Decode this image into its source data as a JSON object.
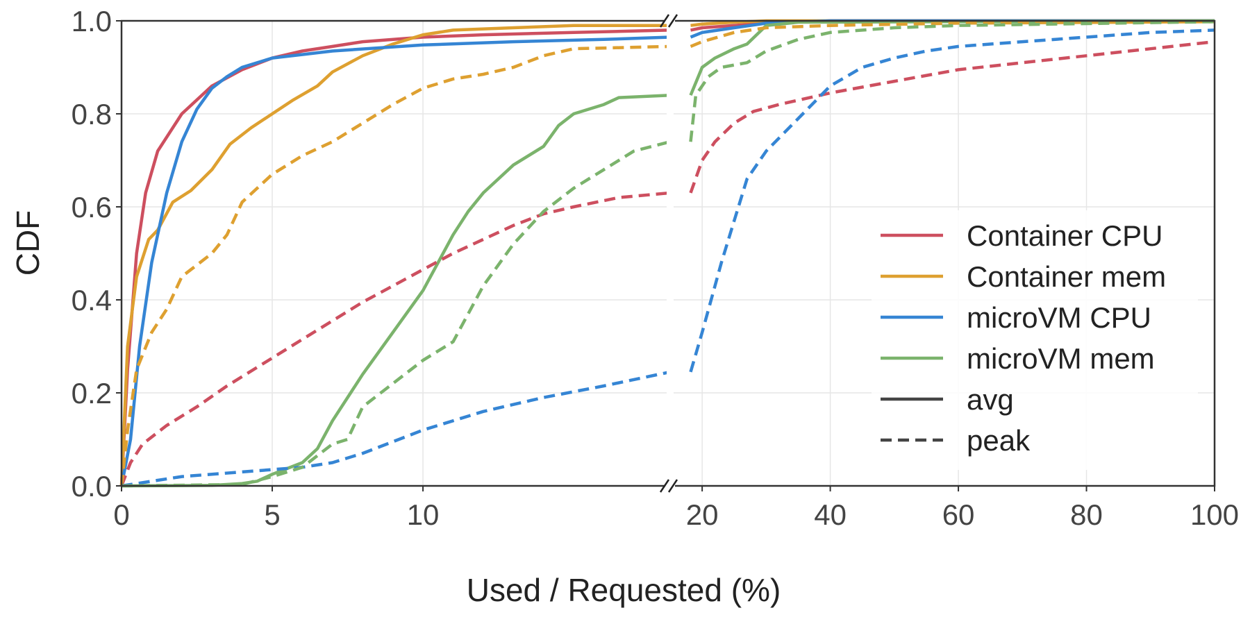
{
  "chart_data": {
    "type": "line",
    "xlabel": "Used / Requested (%)",
    "ylabel": "CDF",
    "ylim": [
      0,
      1
    ],
    "grid": true,
    "x_axis": {
      "broken": true,
      "segments": [
        {
          "range": [
            0,
            18.2
          ],
          "ticks": [
            0,
            5,
            10
          ],
          "tick_labels": [
            "0",
            "5",
            "10"
          ]
        },
        {
          "range": [
            15,
            100
          ],
          "ticks": [
            20,
            40,
            60,
            80,
            100
          ],
          "tick_labels": [
            "20",
            "40",
            "60",
            "80",
            "100"
          ]
        }
      ]
    },
    "y_ticks": [
      0.0,
      0.2,
      0.4,
      0.6,
      0.8,
      1.0
    ],
    "y_tick_labels": [
      "0.0",
      "0.2",
      "0.4",
      "0.6",
      "0.8",
      "1.0"
    ],
    "legend": {
      "position": "lower-right",
      "entries": [
        {
          "label": "Container CPU",
          "color": "#cd4f5f",
          "style": "solid"
        },
        {
          "label": "Container mem",
          "color": "#dea030",
          "style": "solid"
        },
        {
          "label": "microVM CPU",
          "color": "#3585d4",
          "style": "solid"
        },
        {
          "label": "microVM mem",
          "color": "#7bb36c",
          "style": "solid"
        },
        {
          "label": "avg",
          "color": "#444444",
          "style": "solid"
        },
        {
          "label": "peak",
          "color": "#444444",
          "style": "dashed"
        }
      ]
    },
    "series": [
      {
        "label": "Container CPU avg",
        "color": "#cd4f5f",
        "dash": false,
        "points": [
          [
            0,
            0
          ],
          [
            0.2,
            0.25
          ],
          [
            0.5,
            0.5
          ],
          [
            0.8,
            0.63
          ],
          [
            1.2,
            0.72
          ],
          [
            2,
            0.8
          ],
          [
            3,
            0.86
          ],
          [
            4,
            0.895
          ],
          [
            5,
            0.92
          ],
          [
            6,
            0.935
          ],
          [
            7,
            0.945
          ],
          [
            8,
            0.955
          ],
          [
            10,
            0.965
          ],
          [
            12,
            0.97
          ],
          [
            15,
            0.975
          ],
          [
            18.2,
            0.98
          ],
          [
            20,
            0.985
          ],
          [
            25,
            0.99
          ],
          [
            30,
            0.995
          ],
          [
            40,
            1.0
          ],
          [
            100,
            1.0
          ]
        ]
      },
      {
        "label": "Container mem avg",
        "color": "#dea030",
        "dash": false,
        "points": [
          [
            0,
            0
          ],
          [
            0.2,
            0.3
          ],
          [
            0.5,
            0.45
          ],
          [
            0.9,
            0.53
          ],
          [
            1.2,
            0.55
          ],
          [
            1.7,
            0.61
          ],
          [
            2.3,
            0.635
          ],
          [
            3,
            0.68
          ],
          [
            3.6,
            0.735
          ],
          [
            4.3,
            0.77
          ],
          [
            5,
            0.8
          ],
          [
            5.7,
            0.83
          ],
          [
            6.5,
            0.86
          ],
          [
            7,
            0.89
          ],
          [
            8,
            0.925
          ],
          [
            9,
            0.95
          ],
          [
            10,
            0.97
          ],
          [
            11,
            0.98
          ],
          [
            13,
            0.985
          ],
          [
            15,
            0.99
          ],
          [
            18.2,
            0.99
          ],
          [
            20,
            0.993
          ],
          [
            25,
            0.997
          ],
          [
            30,
            1.0
          ],
          [
            100,
            1.0
          ]
        ]
      },
      {
        "label": "microVM CPU avg",
        "color": "#3585d4",
        "dash": false,
        "points": [
          [
            0,
            0
          ],
          [
            0.3,
            0.1
          ],
          [
            0.6,
            0.3
          ],
          [
            1,
            0.48
          ],
          [
            1.5,
            0.63
          ],
          [
            2,
            0.74
          ],
          [
            2.5,
            0.81
          ],
          [
            3,
            0.855
          ],
          [
            3.5,
            0.88
          ],
          [
            4,
            0.9
          ],
          [
            5,
            0.92
          ],
          [
            7,
            0.935
          ],
          [
            10,
            0.948
          ],
          [
            13,
            0.955
          ],
          [
            16,
            0.96
          ],
          [
            18.2,
            0.965
          ],
          [
            20,
            0.975
          ],
          [
            25,
            0.985
          ],
          [
            30,
            0.995
          ],
          [
            40,
            1.0
          ],
          [
            100,
            1.0
          ]
        ]
      },
      {
        "label": "microVM mem avg",
        "color": "#7bb36c",
        "dash": false,
        "points": [
          [
            0,
            0
          ],
          [
            3,
            0.001
          ],
          [
            4,
            0.005
          ],
          [
            4.5,
            0.01
          ],
          [
            5,
            0.025
          ],
          [
            6,
            0.05
          ],
          [
            6.5,
            0.08
          ],
          [
            7,
            0.14
          ],
          [
            8,
            0.24
          ],
          [
            9,
            0.33
          ],
          [
            10,
            0.42
          ],
          [
            10.5,
            0.48
          ],
          [
            11,
            0.54
          ],
          [
            11.5,
            0.59
          ],
          [
            12,
            0.63
          ],
          [
            13,
            0.69
          ],
          [
            14,
            0.73
          ],
          [
            14.5,
            0.775
          ],
          [
            15,
            0.8
          ],
          [
            16,
            0.82
          ],
          [
            16.5,
            0.835
          ],
          [
            18.2,
            0.84
          ],
          [
            20,
            0.9
          ],
          [
            22,
            0.92
          ],
          [
            25,
            0.94
          ],
          [
            27,
            0.95
          ],
          [
            30,
            0.99
          ],
          [
            35,
            0.997
          ],
          [
            100,
            1.0
          ]
        ]
      },
      {
        "label": "Container CPU peak",
        "color": "#cd4f5f",
        "dash": true,
        "points": [
          [
            0,
            0
          ],
          [
            0.3,
            0.05
          ],
          [
            0.7,
            0.09
          ],
          [
            1.5,
            0.13
          ],
          [
            2.5,
            0.17
          ],
          [
            3.5,
            0.215
          ],
          [
            5,
            0.275
          ],
          [
            6,
            0.315
          ],
          [
            7,
            0.355
          ],
          [
            8,
            0.395
          ],
          [
            9,
            0.43
          ],
          [
            10,
            0.465
          ],
          [
            11,
            0.5
          ],
          [
            12,
            0.53
          ],
          [
            13,
            0.56
          ],
          [
            14,
            0.585
          ],
          [
            15,
            0.6
          ],
          [
            16.5,
            0.62
          ],
          [
            18.2,
            0.63
          ],
          [
            20,
            0.7
          ],
          [
            22,
            0.74
          ],
          [
            25,
            0.78
          ],
          [
            28,
            0.805
          ],
          [
            32,
            0.82
          ],
          [
            40,
            0.845
          ],
          [
            50,
            0.87
          ],
          [
            60,
            0.895
          ],
          [
            70,
            0.91
          ],
          [
            80,
            0.925
          ],
          [
            90,
            0.94
          ],
          [
            100,
            0.955
          ]
        ]
      },
      {
        "label": "Container mem peak",
        "color": "#dea030",
        "dash": true,
        "points": [
          [
            0,
            0
          ],
          [
            0.2,
            0.12
          ],
          [
            0.5,
            0.25
          ],
          [
            1,
            0.33
          ],
          [
            1.5,
            0.38
          ],
          [
            2,
            0.45
          ],
          [
            3,
            0.5
          ],
          [
            3.5,
            0.54
          ],
          [
            4,
            0.61
          ],
          [
            5,
            0.67
          ],
          [
            6,
            0.71
          ],
          [
            7,
            0.74
          ],
          [
            7.5,
            0.76
          ],
          [
            8,
            0.78
          ],
          [
            9,
            0.82
          ],
          [
            10,
            0.855
          ],
          [
            11,
            0.875
          ],
          [
            12,
            0.885
          ],
          [
            13,
            0.9
          ],
          [
            14,
            0.925
          ],
          [
            15,
            0.94
          ],
          [
            18.2,
            0.945
          ],
          [
            20,
            0.955
          ],
          [
            25,
            0.975
          ],
          [
            30,
            0.985
          ],
          [
            40,
            0.99
          ],
          [
            60,
            0.995
          ],
          [
            100,
            0.998
          ]
        ]
      },
      {
        "label": "microVM CPU peak",
        "color": "#3585d4",
        "dash": true,
        "points": [
          [
            0,
            0
          ],
          [
            1,
            0.01
          ],
          [
            2,
            0.02
          ],
          [
            4,
            0.03
          ],
          [
            6,
            0.04
          ],
          [
            7,
            0.05
          ],
          [
            8,
            0.07
          ],
          [
            9,
            0.095
          ],
          [
            10,
            0.12
          ],
          [
            12,
            0.16
          ],
          [
            14,
            0.19
          ],
          [
            16,
            0.215
          ],
          [
            18.2,
            0.245
          ],
          [
            20,
            0.33
          ],
          [
            23,
            0.48
          ],
          [
            25,
            0.57
          ],
          [
            27,
            0.66
          ],
          [
            30,
            0.72
          ],
          [
            35,
            0.79
          ],
          [
            40,
            0.86
          ],
          [
            45,
            0.9
          ],
          [
            50,
            0.92
          ],
          [
            55,
            0.935
          ],
          [
            60,
            0.945
          ],
          [
            70,
            0.955
          ],
          [
            80,
            0.965
          ],
          [
            90,
            0.975
          ],
          [
            100,
            0.98
          ]
        ]
      },
      {
        "label": "microVM mem peak",
        "color": "#7bb36c",
        "dash": true,
        "points": [
          [
            0,
            0
          ],
          [
            4,
            0.003
          ],
          [
            5,
            0.02
          ],
          [
            6,
            0.04
          ],
          [
            7,
            0.09
          ],
          [
            7.5,
            0.1
          ],
          [
            8,
            0.17
          ],
          [
            9,
            0.22
          ],
          [
            10,
            0.27
          ],
          [
            11,
            0.31
          ],
          [
            12,
            0.43
          ],
          [
            13,
            0.52
          ],
          [
            14,
            0.59
          ],
          [
            15,
            0.64
          ],
          [
            16,
            0.68
          ],
          [
            17,
            0.72
          ],
          [
            18.2,
            0.74
          ],
          [
            19,
            0.84
          ],
          [
            21,
            0.88
          ],
          [
            23,
            0.9
          ],
          [
            27,
            0.91
          ],
          [
            30,
            0.935
          ],
          [
            35,
            0.96
          ],
          [
            40,
            0.975
          ],
          [
            50,
            0.985
          ],
          [
            60,
            0.99
          ],
          [
            100,
            0.998
          ]
        ]
      }
    ]
  }
}
